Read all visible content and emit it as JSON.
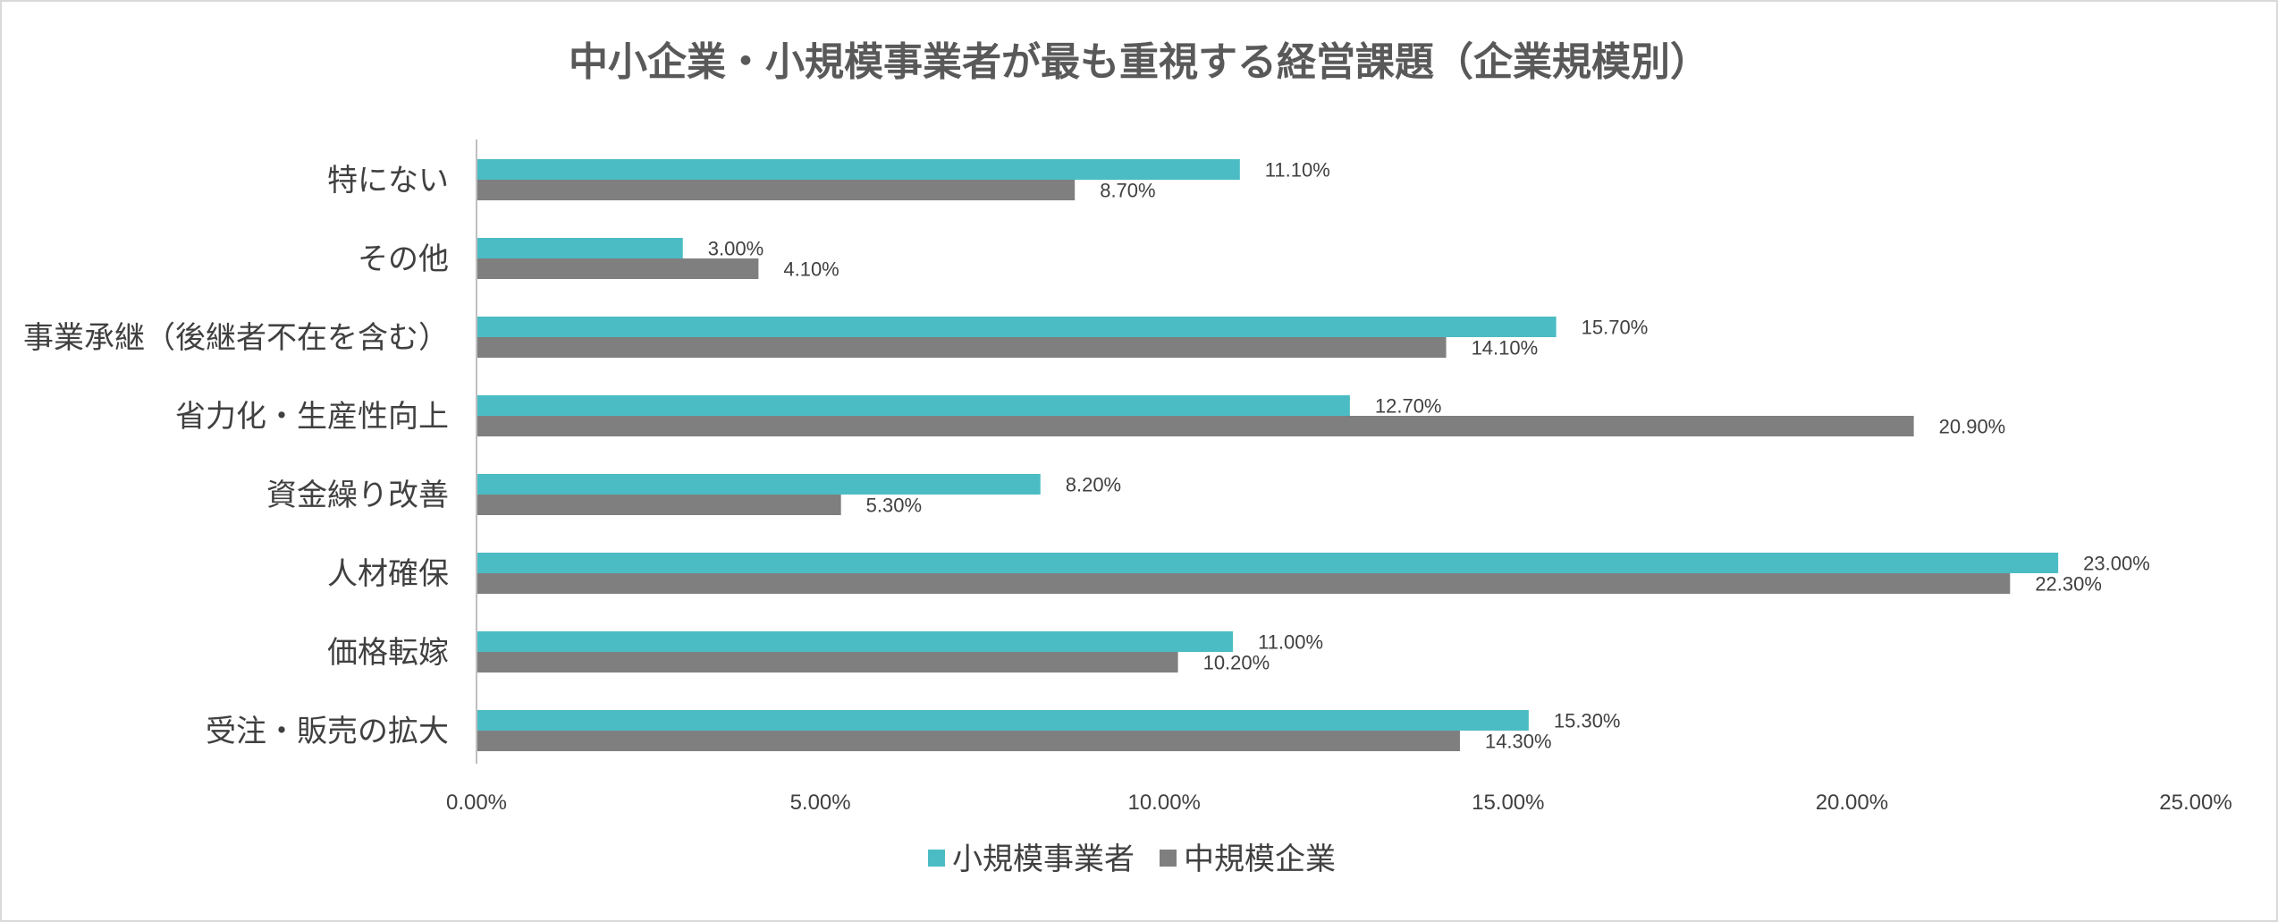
{
  "chart_data": {
    "type": "bar",
    "orientation": "horizontal",
    "title": "中小企業・小規模事業者が最も重視する経営課題（企業規模別）",
    "categories": [
      "特にない",
      "その他",
      "事業承継（後継者不在を含む）",
      "省力化・生産性向上",
      "資金繰り改善",
      "人材確保",
      "価格転嫁",
      "受注・販売の拡大"
    ],
    "series": [
      {
        "name": "小規模事業者",
        "color": "#4BBCC4",
        "values": [
          11.1,
          3.0,
          15.7,
          12.7,
          8.2,
          23.0,
          11.0,
          15.3
        ],
        "labels": [
          "11.10%",
          "3.00%",
          "15.70%",
          "12.70%",
          "8.20%",
          "23.00%",
          "11.00%",
          "15.30%"
        ]
      },
      {
        "name": "中規模企業",
        "color": "#7F7F7F",
        "values": [
          8.7,
          4.1,
          14.1,
          20.9,
          5.3,
          22.3,
          10.2,
          14.3
        ],
        "labels": [
          "8.70%",
          "4.10%",
          "14.10%",
          "20.90%",
          "5.30%",
          "22.30%",
          "10.20%",
          "14.30%"
        ]
      }
    ],
    "xlim": [
      0,
      25
    ],
    "xticks": [
      0,
      5,
      10,
      15,
      20,
      25
    ],
    "xtick_labels": [
      "0.00%",
      "5.00%",
      "10.00%",
      "15.00%",
      "20.00%",
      "25.00%"
    ],
    "xlabel": "",
    "ylabel": "",
    "grid": false,
    "legend_position": "bottom"
  }
}
